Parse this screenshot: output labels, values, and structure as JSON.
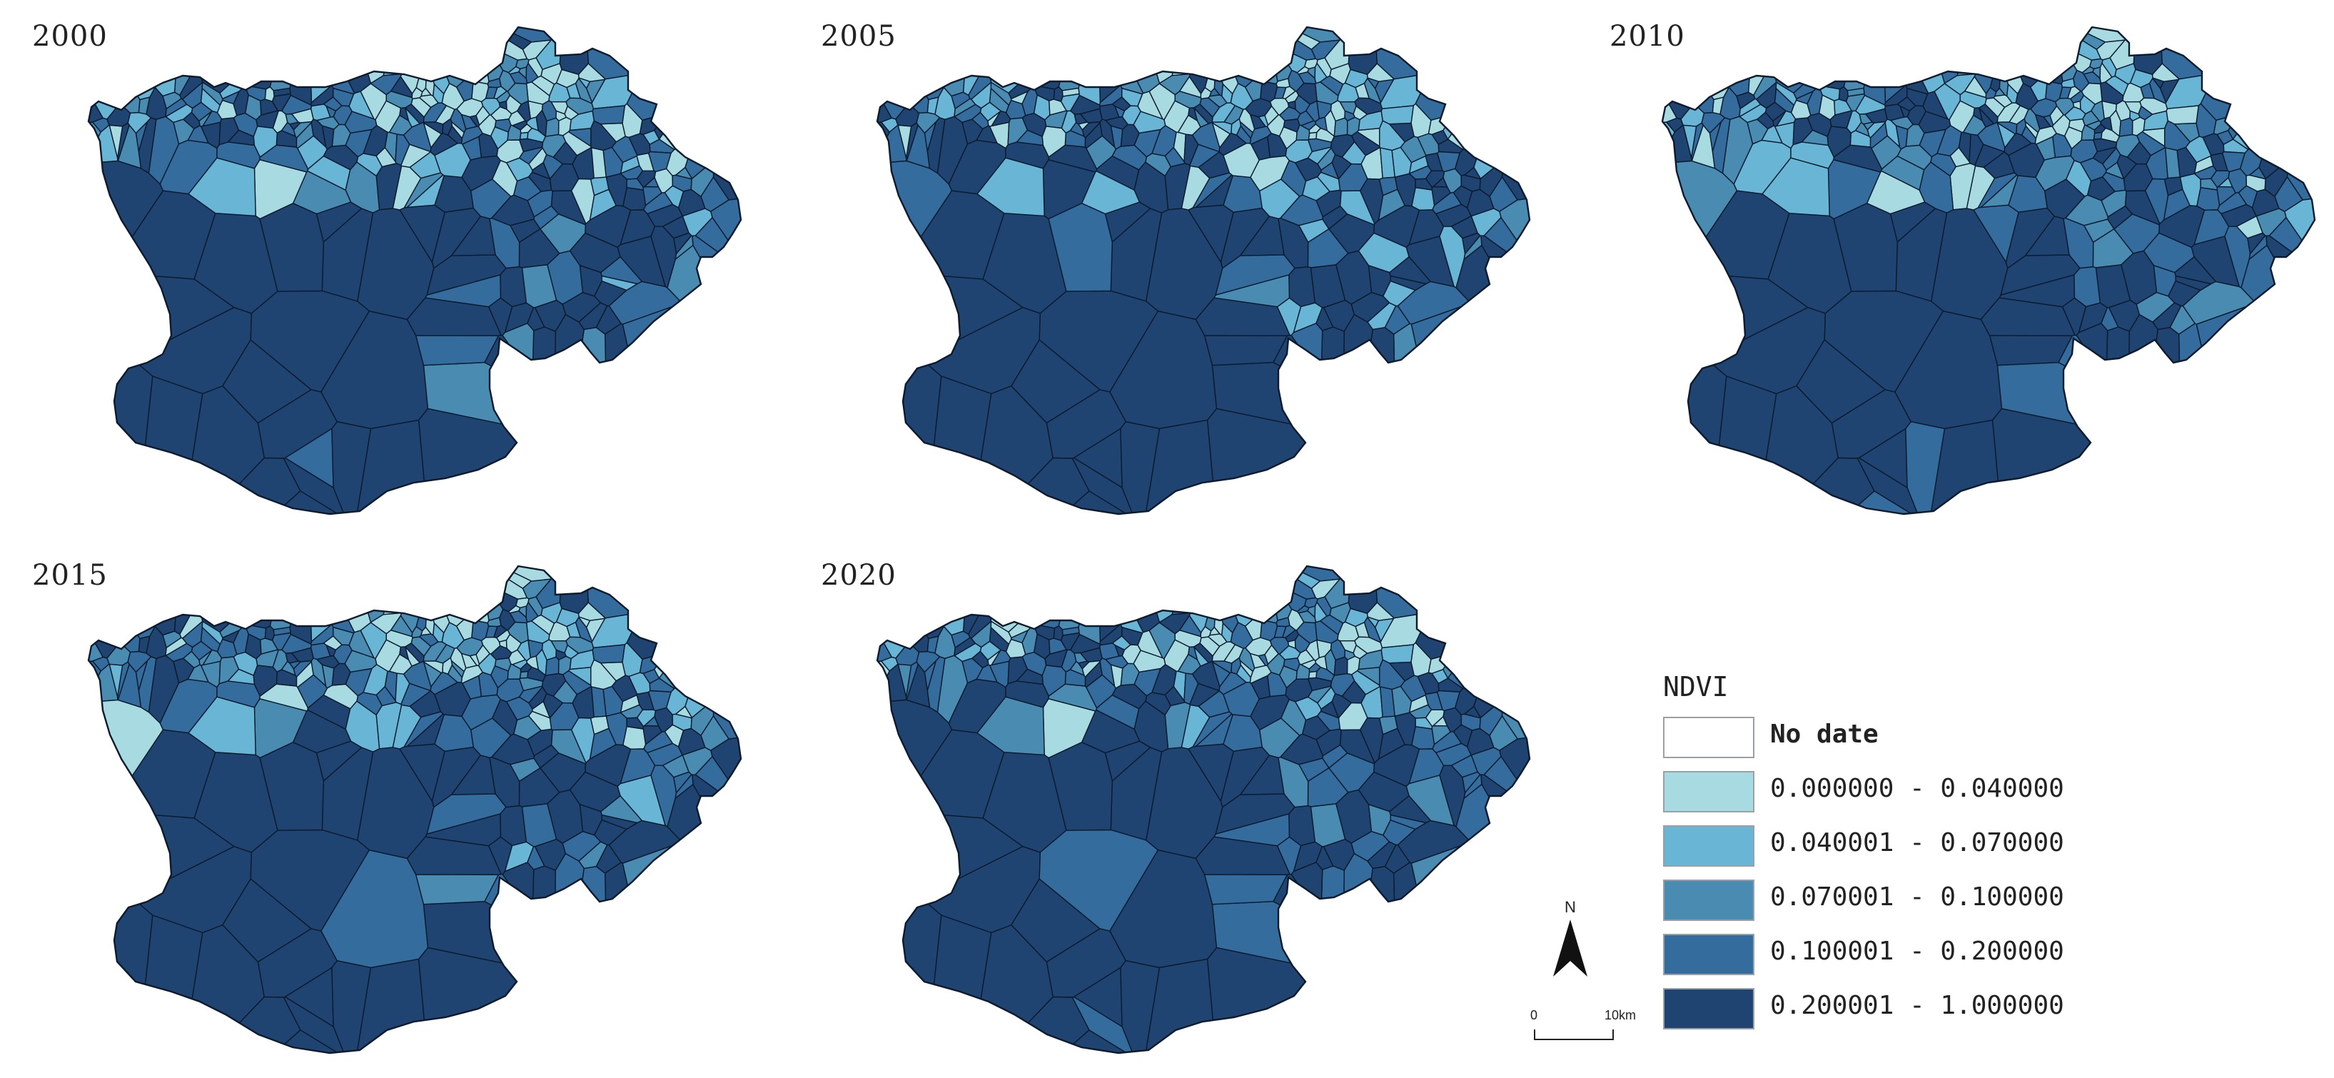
{
  "maps": [
    {
      "id": "m2000",
      "year": "2000",
      "variant": 0
    },
    {
      "id": "m2005",
      "year": "2005",
      "variant": 1
    },
    {
      "id": "m2010",
      "year": "2010",
      "variant": 2
    },
    {
      "id": "m2015",
      "year": "2015",
      "variant": 3
    },
    {
      "id": "m2020",
      "year": "2020",
      "variant": 4
    }
  ],
  "legend": {
    "title": "NDVI",
    "classes": [
      {
        "label": "No date",
        "color": "#ffffff"
      },
      {
        "label": "0.000000 - 0.040000",
        "color": "#a8dbe1"
      },
      {
        "label": "0.040001 - 0.070000",
        "color": "#69b5d6"
      },
      {
        "label": "0.070001 - 0.100000",
        "color": "#4a8bb2"
      },
      {
        "label": "0.100001 - 0.200000",
        "color": "#346c9e"
      },
      {
        "label": "0.200001 - 1.000000",
        "color": "#1f4471"
      }
    ]
  },
  "north_arrow": {
    "label": "N"
  },
  "scale_bar": {
    "start": "0",
    "end": "10km"
  }
}
